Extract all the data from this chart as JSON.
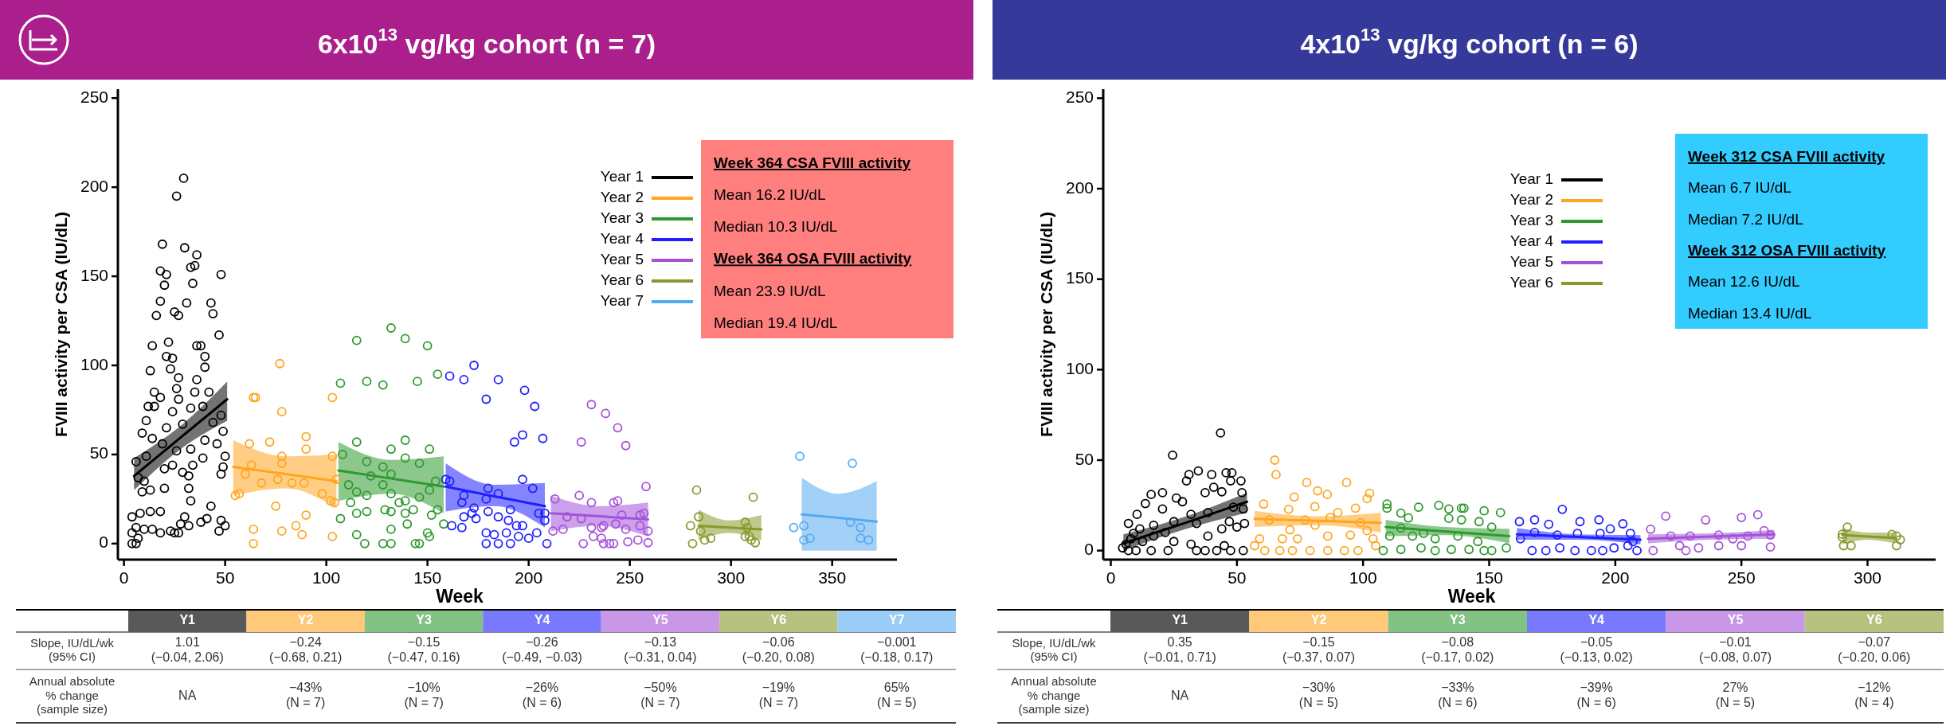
{
  "chart_data": [
    {
      "type": "scatter",
      "title": "6x10$^{13}$ vg/kg cohort (n = 7)",
      "xlabel": "Week",
      "ylabel": "FVIII activity per CSA (IU/dL)",
      "xlim": [
        -3,
        382
      ],
      "xticks": [
        0,
        50,
        100,
        150,
        200,
        250,
        300,
        350
      ],
      "ylim": [
        -9,
        255
      ],
      "yticks": [
        0,
        50,
        100,
        150,
        200,
        250
      ],
      "marker": "circle",
      "legend": "top right",
      "grid": false,
      "annotations": [
        "Week 364 CSA FVIII activity",
        "Mean 16.2 IU/dL",
        "Median 10.3 IU/dL",
        "Week 364 OSA FVIII activity",
        "Mean 23.9 IU/dL",
        "Median 19.4 IU/dL",
        "Slope, IU/dL/wk\n(95% CI)",
        "Annual absolute\n% change\n(sample size)",
        "Y1",
        "1.01\n(−0.04, 2.06)",
        "NA",
        "Y2",
        "−0.24\n(−0.68, 0.21)",
        "−43%\n(N = 7)",
        "Y3",
        "−0.15\n(−0.47, 0.16)",
        "−10%\n(N = 7)",
        "Y4",
        "−0.26\n(−0.49, −0.03)",
        "−26%\n(N = 6)",
        "Y5",
        "−0.13\n(−0.31, 0.04)",
        "−50%\n(N = 7)",
        "Y6",
        "−0.06\n(−0.20, 0.08)",
        "−19%\n(N = 7)",
        "Y7",
        "−0.001\n(−0.18, 0.17)",
        "65%\n(N = 5)"
      ],
      "series": [
        {
          "type": "line",
          "name": "Year 1",
          "color": "#000000",
          "x": [
            5,
            28,
            51
          ],
          "marker": "none",
          "values": [
            38,
            59.5,
            81
          ],
          "lower": [
            30,
            53,
            69
          ],
          "upper": [
            48,
            66,
            91
          ]
        },
        {
          "type": "line",
          "name": "Year 2",
          "color": "#ffa51f",
          "x": [
            54,
            80,
            105
          ],
          "marker": "none",
          "values": [
            43,
            39,
            35
          ],
          "lower": [
            27,
            31,
            20
          ],
          "upper": [
            58,
            49,
            50
          ]
        },
        {
          "type": "line",
          "name": "Year 3",
          "color": "#2e992e",
          "x": [
            106,
            132,
            158
          ],
          "marker": "none",
          "values": [
            41,
            36.5,
            32
          ],
          "lower": [
            24,
            28,
            17
          ],
          "upper": [
            57,
            47,
            49
          ]
        },
        {
          "type": "line",
          "name": "Year 4",
          "color": "#1f1fff",
          "x": [
            159,
            183,
            208
          ],
          "marker": "none",
          "values": [
            32,
            26.5,
            21
          ],
          "lower": [
            18,
            21,
            9
          ],
          "upper": [
            45,
            33,
            34
          ]
        },
        {
          "type": "line",
          "name": "Year 5",
          "color": "#a352d9",
          "x": [
            211,
            235,
            259
          ],
          "marker": "none",
          "values": [
            17,
            15.3,
            13.6
          ],
          "lower": [
            7,
            10,
            4
          ],
          "upper": [
            27,
            21,
            23
          ]
        },
        {
          "type": "line",
          "name": "Year 6",
          "color": "#869a2c",
          "x": [
            284,
            299,
            315
          ],
          "marker": "none",
          "values": [
            10,
            9,
            8
          ],
          "lower": [
            2,
            6,
            2
          ],
          "upper": [
            19,
            13,
            16
          ]
        },
        {
          "type": "line",
          "name": "Year 7",
          "color": "#55aaf0",
          "x": [
            335,
            353,
            372
          ],
          "marker": "none",
          "values": [
            16.4,
            14.4,
            12.3
          ],
          "lower": [
            -4,
            -4,
            -4
          ],
          "upper": [
            37,
            28,
            35
          ]
        },
        {
          "color": "#000000",
          "x": [
            29.5,
            26,
            19,
            30,
            36,
            18,
            21,
            33,
            35,
            48,
            20,
            34,
            31,
            43,
            18,
            44,
            25,
            16,
            27,
            47,
            14,
            22,
            36,
            38,
            21,
            24,
            40,
            13,
            23,
            40,
            27,
            36,
            15,
            18,
            26,
            42,
            27,
            35,
            12,
            15,
            24,
            33,
            39,
            11,
            21,
            29,
            44,
            48,
            9,
            14,
            19,
            26,
            33,
            40,
            46,
            49,
            6,
            11,
            24,
            34,
            39,
            49,
            50,
            7,
            10,
            20,
            29,
            32,
            48,
            9,
            13,
            20,
            32,
            4,
            8,
            13,
            18,
            33,
            43,
            30,
            32,
            18,
            23,
            28,
            38,
            41,
            47,
            50,
            4,
            6,
            10,
            14,
            4,
            6,
            7,
            25,
            27,
            48
          ],
          "values": [
            205,
            195,
            168,
            166,
            162,
            153,
            151,
            155,
            156,
            151,
            145,
            146,
            135,
            135,
            136,
            129,
            130,
            128,
            128,
            117,
            111,
            113,
            111,
            111,
            105,
            104,
            105,
            97,
            98,
            99,
            93,
            92,
            85,
            82,
            87,
            85,
            81,
            85,
            77,
            77,
            74,
            76,
            77,
            69,
            65,
            67,
            68,
            72,
            62,
            59,
            56,
            52,
            53,
            58,
            56,
            63,
            46,
            49,
            44,
            44,
            48,
            43,
            49,
            37,
            35,
            42,
            40,
            38,
            39,
            29,
            30,
            31,
            31,
            15,
            17,
            18,
            18,
            24,
            21,
            15,
            10,
            6,
            7,
            11,
            12,
            14,
            7,
            10,
            6,
            9,
            8,
            8,
            0,
            0,
            3,
            6,
            6,
            13
          ]
        },
        {
          "color": "#ffa51f",
          "x": [
            77,
            64,
            65,
            103,
            78,
            90,
            62,
            72,
            90,
            78,
            103,
            78,
            63,
            76,
            68,
            83,
            89,
            60,
            105,
            55,
            57,
            98,
            102,
            104,
            75,
            90,
            85,
            64,
            78,
            88,
            103,
            64
          ],
          "values": [
            101,
            82,
            82,
            82,
            74,
            60,
            56,
            57,
            53,
            49,
            49,
            45,
            44,
            36,
            34,
            34,
            34,
            39,
            36,
            27,
            28,
            28,
            24,
            23,
            21,
            16,
            10,
            8,
            7,
            5,
            4,
            0
          ]
        },
        {
          "color": "#2e992e",
          "x": [
            132,
            115,
            139,
            150,
            107,
            120,
            128,
            145,
            155,
            115,
            139,
            132,
            151,
            108,
            120,
            128,
            139,
            132,
            146,
            122,
            154,
            111,
            115,
            128,
            151,
            120,
            132,
            112,
            146,
            136,
            139,
            155,
            115,
            120,
            129,
            132,
            139,
            143,
            107,
            152,
            158,
            140,
            132,
            115,
            150,
            151,
            119,
            128,
            132,
            144,
            146
          ],
          "values": [
            121,
            114,
            115,
            111,
            90,
            91,
            89,
            91,
            95,
            57,
            58,
            53,
            53,
            50,
            46,
            43,
            48,
            39,
            45,
            38,
            35,
            33,
            29,
            33,
            30,
            27,
            28,
            23,
            26,
            23,
            24,
            19,
            17,
            18,
            19,
            18,
            17,
            19,
            14,
            16,
            11,
            11,
            8,
            5,
            6,
            4,
            0,
            0,
            0,
            0,
            0
          ]
        },
        {
          "color": "#1f1fff",
          "x": [
            173,
            161,
            168,
            185,
            179,
            198,
            203,
            197,
            193,
            207,
            159,
            161,
            197,
            180,
            202,
            168,
            185,
            179,
            173,
            191,
            167,
            205,
            208,
            168,
            172,
            180,
            185,
            190,
            162,
            167,
            174,
            194,
            197,
            208,
            179,
            183,
            189,
            195,
            200,
            204,
            179,
            185,
            191,
            209
          ],
          "values": [
            100,
            94,
            92,
            92,
            81,
            86,
            77,
            61,
            57,
            59,
            36,
            35,
            36,
            31,
            31,
            27,
            28,
            25,
            20,
            19,
            23,
            17,
            17,
            15,
            17,
            18,
            15,
            13,
            10,
            9,
            14,
            10,
            10,
            13,
            6,
            5,
            6,
            4,
            3,
            6,
            0,
            0,
            0,
            0
          ]
        },
        {
          "color": "#a352d9",
          "x": [
            231,
            238,
            244,
            226,
            225,
            213,
            231,
            244,
            219,
            226,
            231,
            237,
            212,
            217,
            227,
            237,
            242,
            232,
            248,
            258,
            242,
            246,
            255,
            257,
            248,
            255,
            259,
            254,
            259,
            249,
            240,
            236,
            236,
            243
          ],
          "values": [
            78,
            73,
            65,
            57,
            27,
            25,
            23,
            24,
            15,
            14,
            9,
            10,
            7,
            8,
            0,
            0,
            0,
            4,
            55,
            32,
            23,
            16,
            16,
            17,
            8,
            10,
            7,
            2,
            0.5,
            1,
            0,
            3,
            9,
            11
          ]
        },
        {
          "color": "#869a2c",
          "x": [
            283,
            311,
            284,
            280,
            285,
            281,
            287,
            290,
            307,
            308,
            307,
            309,
            312,
            310
          ],
          "values": [
            30,
            26,
            15,
            10,
            7,
            0,
            2,
            3,
            12,
            9,
            4,
            4,
            0.5,
            2
          ]
        },
        {
          "color": "#55aaf0",
          "x": [
            334,
            360,
            331,
            336,
            336,
            339,
            359,
            364,
            364,
            368
          ],
          "values": [
            49,
            45,
            9,
            10,
            2,
            3,
            12,
            9,
            3,
            2
          ]
        }
      ]
    },
    {
      "type": "scatter",
      "title": "4x10$^{13}$ vg/kg cohort (n = 6)",
      "xlabel": "Week",
      "ylabel": "FVIII activity per CSA (IU/dL)",
      "xlim": [
        -3,
        327
      ],
      "xticks": [
        0,
        50,
        100,
        150,
        200,
        250,
        300
      ],
      "ylim": [
        -5,
        255
      ],
      "yticks": [
        0,
        50,
        100,
        150,
        200,
        250
      ],
      "marker": "circle",
      "legend": "top right",
      "grid": false,
      "annotations": [
        "Week 312 CSA FVIII activity",
        "Mean 6.7 IU/dL",
        "Median 7.2 IU/dL",
        "Week 312 OSA FVIII activity",
        "Mean 12.6 IU/dL",
        "Median 13.4 IU/dL",
        "Slope, IU/dL/wk\n(95% CI)",
        "Annual absolute\n% change\n(sample size)",
        "Y1",
        "0.35\n(−0.01, 0.71)",
        "NA",
        "Y2",
        "−0.15\n(−0.37, 0.07)",
        "−30%\n(N = 5)",
        "Y3",
        "−0.08\n(−0.17, 0.02)",
        "−33%\n(N = 6)",
        "Y4",
        "−0.05\n(−0.13, 0.02)",
        "−39%\n(N = 6)",
        "Y5",
        "−0.01\n(−0.08, 0.07)",
        "27%\n(N = 5)",
        "Y6",
        "−0.07\n(−0.20, 0.06)",
        "−12%\n(N = 4)"
      ],
      "series": [
        {
          "type": "line",
          "name": "Year 1",
          "color": "#000000",
          "x": [
            5,
            30,
            54
          ],
          "marker": "none",
          "values": [
            4,
            15.5,
            27
          ],
          "lower": [
            0,
            12,
            21
          ],
          "upper": [
            9,
            19,
            32
          ]
        },
        {
          "type": "line",
          "name": "Year 2",
          "color": "#ffa51f",
          "x": [
            57,
            82,
            107
          ],
          "marker": "none",
          "values": [
            17.5,
            16.5,
            15.4
          ],
          "lower": [
            13,
            14,
            10
          ],
          "upper": [
            22,
            19,
            21
          ]
        },
        {
          "type": "line",
          "name": "Year 3",
          "color": "#2e992e",
          "x": [
            109,
            133,
            158
          ],
          "marker": "none",
          "values": [
            13,
            10.5,
            8
          ],
          "lower": [
            8,
            8.5,
            4
          ],
          "upper": [
            17,
            13,
            12
          ]
        },
        {
          "type": "line",
          "name": "Year 4",
          "color": "#1f1fff",
          "x": [
            161,
            185,
            210
          ],
          "marker": "none",
          "values": [
            9,
            7.5,
            6
          ],
          "lower": [
            6,
            6,
            3.5
          ],
          "upper": [
            12.5,
            9,
            8.5
          ]
        },
        {
          "type": "line",
          "name": "Year 5",
          "color": "#a352d9",
          "x": [
            213,
            238,
            263
          ],
          "marker": "none",
          "values": [
            6.5,
            7.8,
            9
          ],
          "lower": [
            4,
            6,
            6.5
          ],
          "upper": [
            9,
            9.5,
            11.5
          ]
        },
        {
          "type": "line",
          "name": "Year 6",
          "color": "#869a2c",
          "x": [
            290,
            300,
            311
          ],
          "marker": "none",
          "values": [
            8.6,
            7.8,
            7
          ],
          "lower": [
            3.5,
            6,
            4
          ],
          "upper": [
            12.5,
            10,
            10
          ]
        },
        {
          "color": "#000000",
          "x": [
            43.5,
            24.5,
            34.7,
            31,
            30,
            40,
            45.7,
            48,
            47.5,
            51.6,
            20.5,
            16,
            40.8,
            44,
            37.4,
            26,
            28.4,
            13.7,
            20.5,
            10.4,
            31.8,
            38.5,
            48.6,
            52.5,
            47,
            53,
            7,
            11.5,
            17,
            25,
            34,
            44,
            50,
            9,
            17,
            25,
            31.8,
            38.5,
            6,
            7,
            10,
            16,
            22.7,
            34,
            37.4,
            42,
            47.5,
            52.5,
            45,
            8,
            12.6,
            4.7,
            21.6,
            52
          ],
          "values": [
            65,
            52.7,
            44,
            42,
            38.5,
            42,
            43,
            43,
            38.5,
            38.5,
            32,
            31,
            35,
            32.5,
            32,
            29,
            27,
            26,
            23,
            20,
            20,
            21,
            24,
            23,
            16,
            15,
            15,
            12,
            14,
            16,
            15,
            12,
            13,
            9.5,
            8,
            5,
            3.5,
            8,
            3.5,
            0,
            0,
            0,
            0,
            0,
            0,
            0,
            0,
            0,
            2.7,
            6.5,
            5,
            1.5,
            10,
            32
          ]
        },
        {
          "color": "#ffa51f",
          "x": [
            65,
            65.5,
            77.7,
            93.5,
            72.7,
            82,
            85.8,
            101.6,
            60.6,
            70.5,
            97,
            80.9,
            90,
            102.6,
            62.8,
            77,
            87,
            99,
            59,
            68,
            74,
            86,
            95,
            104,
            57,
            61,
            67,
            72,
            79,
            86,
            92.6,
            98,
            105,
            71,
            81,
            101.6
          ],
          "values": [
            50,
            42,
            37.6,
            37.6,
            29.6,
            33,
            31,
            28.7,
            25.7,
            22.8,
            23.4,
            24.3,
            21,
            31.7,
            16.9,
            16.9,
            18.3,
            15.4,
            6.5,
            6.5,
            6.5,
            8,
            8.6,
            6.5,
            2.7,
            0,
            0,
            0,
            0,
            0,
            0,
            0,
            2.7,
            11.5,
            14,
            11
          ]
        },
        {
          "color": "#2e992e",
          "x": [
            109.5,
            109.5,
            122,
            115,
            118,
            130,
            134,
            139,
            140,
            134,
            139,
            148,
            154.5,
            146,
            151,
            115,
            124,
            110.6,
            119.6,
            128.6,
            137.6,
            145.5,
            115,
            123,
            128.6,
            135,
            142,
            148,
            151,
            156.8,
            108
          ],
          "values": [
            25.7,
            23.4,
            24,
            20.7,
            18,
            25,
            23,
            23.4,
            23.4,
            17.8,
            17,
            22,
            21,
            16,
            13,
            12.4,
            9.5,
            8,
            8,
            6.5,
            8,
            5,
            0.6,
            1.5,
            0,
            0.6,
            0.6,
            0,
            0,
            1.5,
            0
          ]
        },
        {
          "color": "#1f1fff",
          "x": [
            179,
            168,
            162,
            173.6,
            186,
            193.5,
            203,
            198,
            168,
            177,
            185,
            194,
            206,
            162.4,
            167,
            172.5,
            178,
            184,
            190.5,
            195,
            199.5,
            205,
            208.6,
            207
          ],
          "values": [
            22.8,
            17,
            16,
            14.5,
            16,
            17,
            14.8,
            12,
            10,
            8.6,
            9.5,
            9.5,
            9.5,
            6.5,
            0,
            0,
            1.5,
            0,
            0,
            0,
            1.5,
            2.7,
            0,
            5
          ]
        },
        {
          "color": "#a352d9",
          "x": [
            220,
            256.5,
            235.8,
            250,
            214,
            259,
            222,
            229.7,
            241,
            246.6,
            252.5,
            261.5,
            225.5,
            233,
            241,
            250,
            261.5,
            215,
            228
          ],
          "values": [
            19,
            19.8,
            16.9,
            18.3,
            11.8,
            11,
            8,
            8,
            8.6,
            6.5,
            8,
            8.6,
            2.7,
            1.5,
            2.7,
            2.7,
            2,
            0,
            0
          ]
        },
        {
          "color": "#869a2c",
          "x": [
            292,
            290,
            290,
            290.5,
            293.5,
            309.7,
            311.5,
            313,
            311.5
          ],
          "values": [
            13,
            9,
            7.4,
            2.7,
            2.7,
            8.9,
            8,
            6,
            2.7
          ]
        }
      ]
    }
  ]
}
